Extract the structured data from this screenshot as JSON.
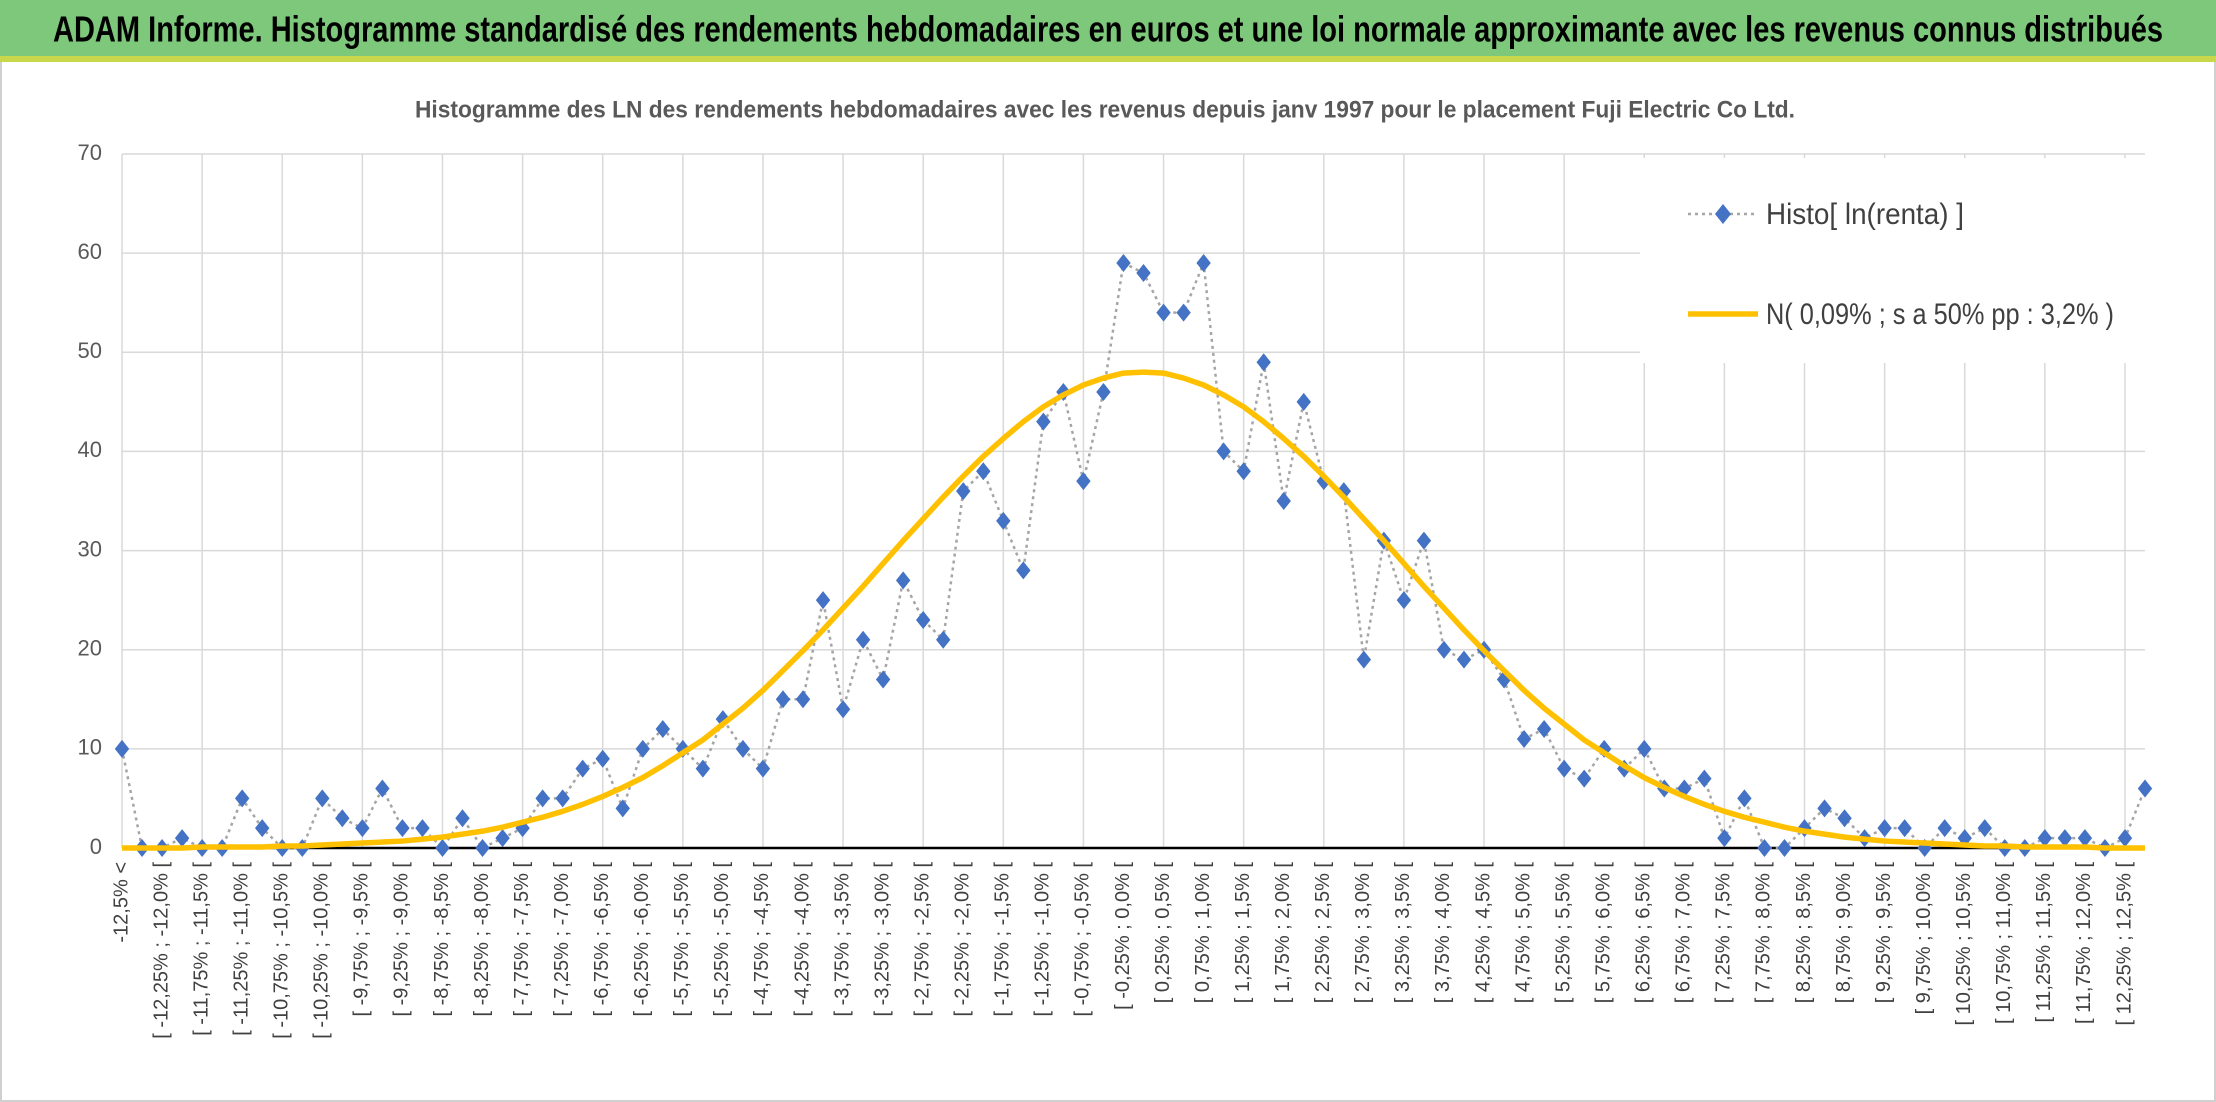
{
  "chart_data": {
    "type": "line",
    "title": "ADAM Informe. Histogramme standardisé des rendements hebdomadaires en euros et une loi normale approximante avec les revenus connus distribués",
    "subtitle": "Histogramme des LN des rendements hebdomadaires avec les revenus depuis janv 1997 pour le placement Fuji Electric Co Ltd.",
    "categories": [
      "-12,5% <",
      null,
      "[ -12,25% ; -12,0% [",
      null,
      "[ -11,75% ; -11,5% [",
      null,
      "[ -11,25% ; -11,0% [",
      null,
      "[ -10,75% ; -10,5% [",
      null,
      "[ -10,25% ; -10,0% [",
      null,
      "[ -9,75% ; -9,5% [",
      null,
      "[ -9,25% ; -9,0% [",
      null,
      "[ -8,75% ; -8,5% [",
      null,
      "[ -8,25% ; -8,0% [",
      null,
      "[ -7,75% ; -7,5% [",
      null,
      "[ -7,25% ; -7,0% [",
      null,
      "[ -6,75% ; -6,5% [",
      null,
      "[ -6,25% ; -6,0% [",
      null,
      "[ -5,75% ; -5,5% [",
      null,
      "[ -5,25% ; -5,0% [",
      null,
      "[ -4,75% ; -4,5% [",
      null,
      "[ -4,25% ; -4,0% [",
      null,
      "[ -3,75% ; -3,5% [",
      null,
      "[ -3,25% ; -3,0% [",
      null,
      "[ -2,75% ; -2,5% [",
      null,
      "[ -2,25% ; -2,0% [",
      null,
      "[ -1,75% ; -1,5% [",
      null,
      "[ -1,25% ; -1,0% [",
      null,
      "[ -0,75% ; -0,5% [",
      null,
      "[ -0,25% ; 0,0% [",
      null,
      "[ 0,25% ; 0,5% [",
      null,
      "[ 0,75% ; 1,0% [",
      null,
      "[ 1,25% ; 1,5% [",
      null,
      "[ 1,75% ; 2,0% [",
      null,
      "[ 2,25% ; 2,5% [",
      null,
      "[ 2,75% ; 3,0% [",
      null,
      "[ 3,25% ; 3,5% [",
      null,
      "[ 3,75% ; 4,0% [",
      null,
      "[ 4,25% ; 4,5% [",
      null,
      "[ 4,75% ; 5,0% [",
      null,
      "[ 5,25% ; 5,5% [",
      null,
      "[ 5,75% ; 6,0% [",
      null,
      "[ 6,25% ; 6,5% [",
      null,
      "[ 6,75% ; 7,0% [",
      null,
      "[ 7,25% ; 7,5% [",
      null,
      "[ 7,75% ; 8,0% [",
      null,
      "[ 8,25% ; 8,5% [",
      null,
      "[ 8,75% ; 9,0% [",
      null,
      "[ 9,25% ; 9,5% [",
      null,
      "[ 9,75% ; 10,0% [",
      null,
      "[ 10,25% ; 10,5% [",
      null,
      "[ 10,75% ; 11,0% [",
      null,
      "[ 11,25% ; 11,5% [",
      null,
      "[ 11,75% ; 12,0% [",
      null,
      "[ 12,25% ; 12,5% [",
      null
    ],
    "series": [
      {
        "name": "Histo[ ln(renta) ]",
        "color": "#4472c4",
        "line_color": "#a5a5a5",
        "line_style": "dotted",
        "marker": "diamond",
        "values": [
          10,
          0,
          0,
          1,
          0,
          0,
          5,
          2,
          0,
          0,
          5,
          3,
          2,
          6,
          2,
          2,
          0,
          3,
          0,
          1,
          2,
          5,
          5,
          8,
          9,
          4,
          10,
          12,
          10,
          8,
          13,
          10,
          8,
          15,
          15,
          25,
          14,
          21,
          17,
          27,
          23,
          21,
          36,
          38,
          33,
          28,
          43,
          46,
          37,
          46,
          59,
          58,
          54,
          54,
          59,
          40,
          38,
          49,
          35,
          45,
          37,
          36,
          19,
          31,
          25,
          31,
          20,
          19,
          20,
          17,
          11,
          12,
          8,
          7,
          10,
          8,
          10,
          6,
          6,
          7,
          1,
          5,
          0,
          0,
          2,
          4,
          3,
          1,
          2,
          2,
          0,
          2,
          1,
          2,
          0,
          0,
          1,
          1,
          1,
          0,
          1,
          6
        ]
      },
      {
        "name": "N( 0,09% ; s a 50% pp : 3,2% )",
        "color": "#ffc000",
        "line_style": "solid",
        "values": [
          0,
          0,
          0,
          0,
          0.1,
          0.1,
          0.1,
          0.1,
          0.2,
          0.2,
          0.3,
          0.4,
          0.5,
          0.6,
          0.7,
          0.9,
          1.1,
          1.4,
          1.7,
          2.1,
          2.6,
          3.1,
          3.7,
          4.4,
          5.2,
          6.1,
          7.1,
          8.3,
          9.6,
          10.9,
          12.5,
          14.1,
          15.9,
          17.9,
          19.9,
          22.0,
          24.2,
          26.4,
          28.7,
          31.0,
          33.2,
          35.4,
          37.5,
          39.5,
          41.3,
          43.0,
          44.5,
          45.7,
          46.7,
          47.4,
          47.9,
          48,
          47.9,
          47.4,
          46.7,
          45.7,
          44.5,
          43.0,
          41.3,
          39.5,
          37.5,
          35.4,
          33.2,
          31.0,
          28.7,
          26.4,
          24.2,
          22.0,
          19.9,
          17.9,
          15.9,
          14.1,
          12.5,
          10.9,
          9.6,
          8.3,
          7.1,
          6.1,
          5.2,
          4.4,
          3.7,
          3.1,
          2.6,
          2.1,
          1.7,
          1.4,
          1.1,
          0.9,
          0.7,
          0.6,
          0.5,
          0.4,
          0.3,
          0.2,
          0.2,
          0.1,
          0.1,
          0.1,
          0.1,
          0,
          0,
          0
        ]
      }
    ],
    "ylim": [
      0,
      70
    ],
    "yticks": [
      0,
      10,
      20,
      30,
      40,
      50,
      60,
      70
    ],
    "grid": true,
    "legend": "upper right"
  }
}
